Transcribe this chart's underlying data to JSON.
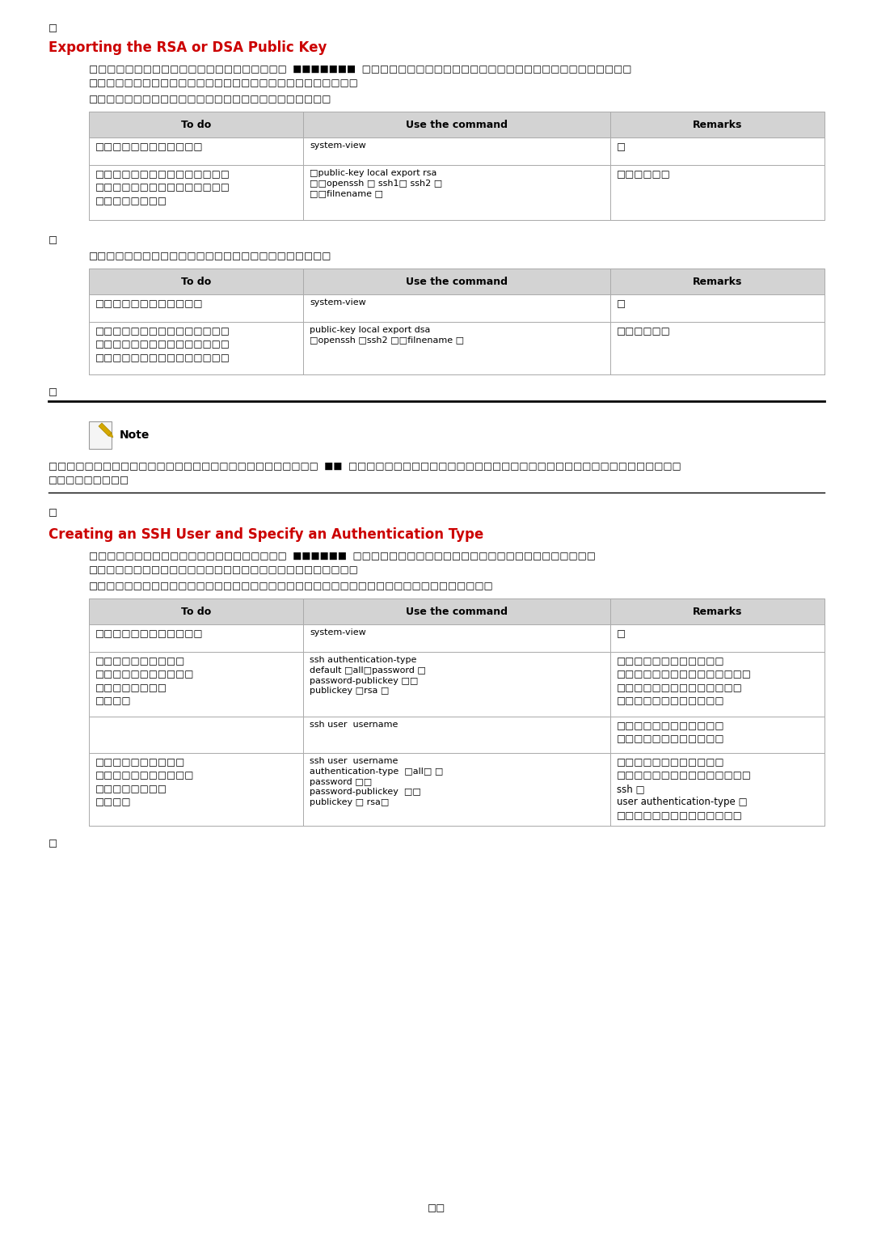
{
  "bg_color": "#ffffff",
  "page_width": 10.8,
  "page_height": 15.27,
  "title1": "Exporting the RSA or DSA Public Key",
  "title2": "Creating an SSH User and Specify an Authentication Type",
  "title_color": "#cc0000",
  "title_fontsize": 12,
  "body_fontsize": 8.5,
  "cmd_fontsize": 8.0,
  "header_bg": "#d3d3d3",
  "table_border_color": "#aaaaaa",
  "black": "#000000",
  "col_headers": [
    "To do",
    "Use the command",
    "Remarks"
  ],
  "sq": "□",
  "note_text": "Note",
  "page_num": "□□"
}
